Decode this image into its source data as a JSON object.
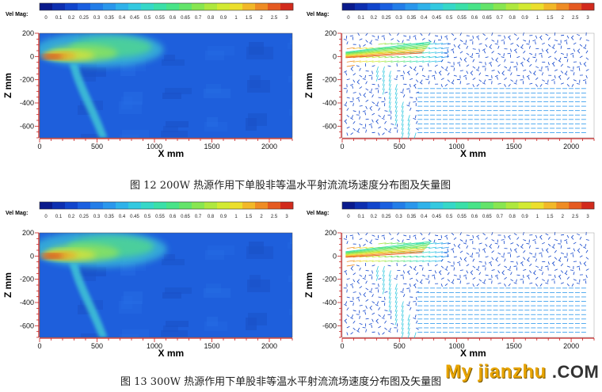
{
  "colorbar": {
    "label": "Vel Mag:",
    "ticks": [
      "0",
      "0.1",
      "0.2",
      "0.25",
      "0.3",
      "0.35",
      "0.4",
      "0.45",
      "0.5",
      "0.55",
      "0.6",
      "0.65",
      "0.7",
      "0.8",
      "0.9",
      "1",
      "1.5",
      "2",
      "2.5",
      "3"
    ],
    "colors": [
      "#0a1a8c",
      "#0d2fb0",
      "#1145cc",
      "#1a5fe0",
      "#237de8",
      "#2a97ec",
      "#2fb2ea",
      "#33c9e0",
      "#35d8c8",
      "#3ae0a8",
      "#48e488",
      "#63e46a",
      "#88e650",
      "#aee83e",
      "#d2ea32",
      "#ecdf2c",
      "#f2b828",
      "#ef8c24",
      "#e55a20",
      "#d22a1c"
    ]
  },
  "captions": {
    "fig12": "图 12 200W 热源作用下单股非等温水平射流流场速度分布图及矢量图",
    "fig13": "图 13 300W 热源作用下单股非等温水平射流流场速度分布图及矢量图"
  },
  "watermark": {
    "main": "My jianzhu",
    "tld": ".COM"
  },
  "chart_data": [
    {
      "type": "heatmap",
      "figure": "图 12",
      "view": "contour",
      "xlabel": "X mm",
      "ylabel": "Z mm",
      "xlim": [
        0,
        2200
      ],
      "ylim": [
        -700,
        200
      ],
      "xticks": [
        0,
        500,
        1000,
        1500,
        2000
      ],
      "yticks": [
        200,
        0,
        -200,
        -400,
        -600
      ],
      "colorbar_range": [
        0,
        3
      ]
    },
    {
      "type": "scatter",
      "figure": "图 12",
      "view": "vector",
      "xlabel": "X mm",
      "ylabel": "Z mm",
      "xlim": [
        0,
        2200
      ],
      "ylim": [
        -700,
        200
      ],
      "xticks": [
        0,
        500,
        1000,
        1500,
        2000
      ],
      "yticks": [
        200,
        0,
        -200,
        -400,
        -600
      ],
      "colorbar_range": [
        0,
        3
      ]
    },
    {
      "type": "heatmap",
      "figure": "图 13",
      "view": "contour",
      "xlabel": "X mm",
      "ylabel": "Z mm",
      "xlim": [
        0,
        2200
      ],
      "ylim": [
        -700,
        200
      ],
      "xticks": [
        0,
        500,
        1000,
        1500,
        2000
      ],
      "yticks": [
        200,
        0,
        -200,
        -400,
        -600
      ],
      "colorbar_range": [
        0,
        3
      ]
    },
    {
      "type": "scatter",
      "figure": "图 13",
      "view": "vector",
      "xlabel": "X mm",
      "ylabel": "Z mm",
      "xlim": [
        0,
        2200
      ],
      "ylim": [
        -700,
        200
      ],
      "xticks": [
        0,
        500,
        1000,
        1500,
        2000
      ],
      "yticks": [
        200,
        0,
        -200,
        -400,
        -600
      ],
      "colorbar_range": [
        0,
        3
      ]
    }
  ]
}
